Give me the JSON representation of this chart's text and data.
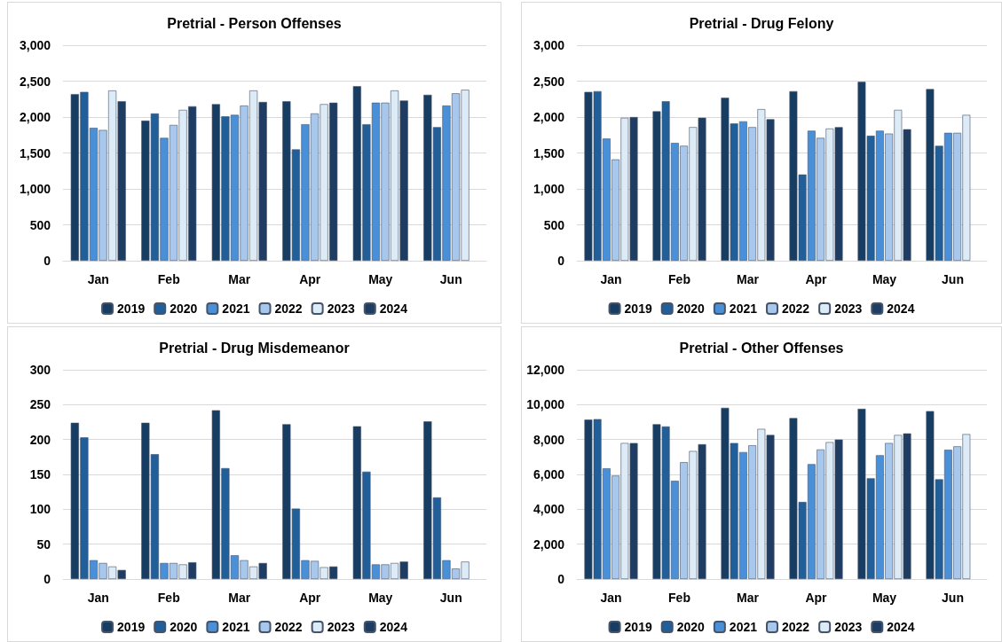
{
  "chart_data": [
    {
      "type": "bar",
      "title": "Pretrial - Person Offenses",
      "categories": [
        "Jan",
        "Feb",
        "Mar",
        "Apr",
        "May",
        "Jun"
      ],
      "ylim": [
        0,
        3000
      ],
      "yticks": [
        {
          "value": 0,
          "label": "0"
        },
        {
          "value": 500,
          "label": "500"
        },
        {
          "value": 1000,
          "label": "1,000"
        },
        {
          "value": 1500,
          "label": "1,500"
        },
        {
          "value": 2000,
          "label": "2,000"
        },
        {
          "value": 2500,
          "label": "2,500"
        },
        {
          "value": 3000,
          "label": "3,000"
        }
      ],
      "grid": "y",
      "legend": "bottom",
      "series": [
        {
          "name": "2019",
          "color": "#173d63",
          "values": [
            2320,
            1950,
            2180,
            2220,
            2430,
            2310
          ]
        },
        {
          "name": "2020",
          "color": "#215f9a",
          "values": [
            2350,
            2050,
            2010,
            1550,
            1900,
            1860
          ]
        },
        {
          "name": "2021",
          "color": "#4a90d9",
          "values": [
            1850,
            1710,
            2030,
            1900,
            2200,
            2160
          ]
        },
        {
          "name": "2022",
          "color": "#a7c8ec",
          "values": [
            1820,
            1890,
            2160,
            2050,
            2200,
            2330
          ]
        },
        {
          "name": "2023",
          "color": "#ddebf7",
          "values": [
            2370,
            2100,
            2370,
            2180,
            2370,
            2380
          ]
        },
        {
          "name": "2024",
          "color": "#1f3d63",
          "values": [
            2220,
            2150,
            2210,
            2200,
            2230,
            null
          ]
        }
      ]
    },
    {
      "type": "bar",
      "title": "Pretrial - Drug Felony",
      "categories": [
        "Jan",
        "Feb",
        "Mar",
        "Apr",
        "May",
        "Jun"
      ],
      "ylim": [
        0,
        3000
      ],
      "yticks": [
        {
          "value": 0,
          "label": "0"
        },
        {
          "value": 500,
          "label": "500"
        },
        {
          "value": 1000,
          "label": "1,000"
        },
        {
          "value": 1500,
          "label": "1,500"
        },
        {
          "value": 2000,
          "label": "2,000"
        },
        {
          "value": 2500,
          "label": "2,500"
        },
        {
          "value": 3000,
          "label": "3,000"
        }
      ],
      "grid": "y",
      "legend": "bottom",
      "series": [
        {
          "name": "2019",
          "color": "#173d63",
          "values": [
            2350,
            2080,
            2270,
            2360,
            2490,
            2390
          ]
        },
        {
          "name": "2020",
          "color": "#215f9a",
          "values": [
            2360,
            2220,
            1910,
            1200,
            1740,
            1600
          ]
        },
        {
          "name": "2021",
          "color": "#4a90d9",
          "values": [
            1700,
            1640,
            1940,
            1810,
            1810,
            1780
          ]
        },
        {
          "name": "2022",
          "color": "#a7c8ec",
          "values": [
            1410,
            1600,
            1860,
            1710,
            1770,
            1780
          ]
        },
        {
          "name": "2023",
          "color": "#ddebf7",
          "values": [
            1990,
            1860,
            2110,
            1840,
            2100,
            2030
          ]
        },
        {
          "name": "2024",
          "color": "#1f3d63",
          "values": [
            2000,
            1990,
            1970,
            1860,
            1830,
            null
          ]
        }
      ]
    },
    {
      "type": "bar",
      "title": "Pretrial - Drug Misdemeanor",
      "categories": [
        "Jan",
        "Feb",
        "Mar",
        "Apr",
        "May",
        "Jun"
      ],
      "ylim": [
        0,
        300
      ],
      "yticks": [
        0,
        50,
        100,
        150,
        200,
        250,
        300
      ],
      "grid": "y",
      "legend": "bottom",
      "series": [
        {
          "name": "2019",
          "color": "#173d63",
          "values": [
            224,
            224,
            242,
            222,
            219,
            226
          ]
        },
        {
          "name": "2020",
          "color": "#215f9a",
          "values": [
            203,
            179,
            159,
            101,
            154,
            117
          ]
        },
        {
          "name": "2021",
          "color": "#4a90d9",
          "values": [
            27,
            23,
            34,
            27,
            21,
            27
          ]
        },
        {
          "name": "2022",
          "color": "#a7c8ec",
          "values": [
            23,
            23,
            27,
            26,
            21,
            15
          ]
        },
        {
          "name": "2023",
          "color": "#ddebf7",
          "values": [
            18,
            21,
            18,
            17,
            23,
            25
          ]
        },
        {
          "name": "2024",
          "color": "#1f3d63",
          "values": [
            13,
            24,
            23,
            18,
            25,
            null
          ]
        }
      ]
    },
    {
      "type": "bar",
      "title": "Pretrial - Other Offenses",
      "categories": [
        "Jan",
        "Feb",
        "Mar",
        "Apr",
        "May",
        "Jun"
      ],
      "ylim": [
        0,
        12000
      ],
      "yticks": [
        {
          "value": 0,
          "label": "0"
        },
        {
          "value": 2000,
          "label": "2,000"
        },
        {
          "value": 4000,
          "label": "4,000"
        },
        {
          "value": 6000,
          "label": "6,000"
        },
        {
          "value": 8000,
          "label": "8,000"
        },
        {
          "value": 10000,
          "label": "10,000"
        },
        {
          "value": 12000,
          "label": "12,000"
        }
      ],
      "grid": "y",
      "legend": "bottom",
      "series": [
        {
          "name": "2019",
          "color": "#173d63",
          "values": [
            9140,
            8880,
            9820,
            9230,
            9760,
            9630
          ]
        },
        {
          "name": "2020",
          "color": "#215f9a",
          "values": [
            9170,
            8750,
            7800,
            4420,
            5780,
            5720
          ]
        },
        {
          "name": "2021",
          "color": "#4a90d9",
          "values": [
            6350,
            5630,
            7280,
            6590,
            7100,
            7410
          ]
        },
        {
          "name": "2022",
          "color": "#a7c8ec",
          "values": [
            5930,
            6700,
            7670,
            7430,
            7800,
            7610
          ]
        },
        {
          "name": "2023",
          "color": "#ddebf7",
          "values": [
            7800,
            7340,
            8610,
            7850,
            8260,
            8310
          ]
        },
        {
          "name": "2024",
          "color": "#1f3d63",
          "values": [
            7800,
            7730,
            8260,
            8000,
            8350,
            null
          ]
        }
      ]
    }
  ]
}
